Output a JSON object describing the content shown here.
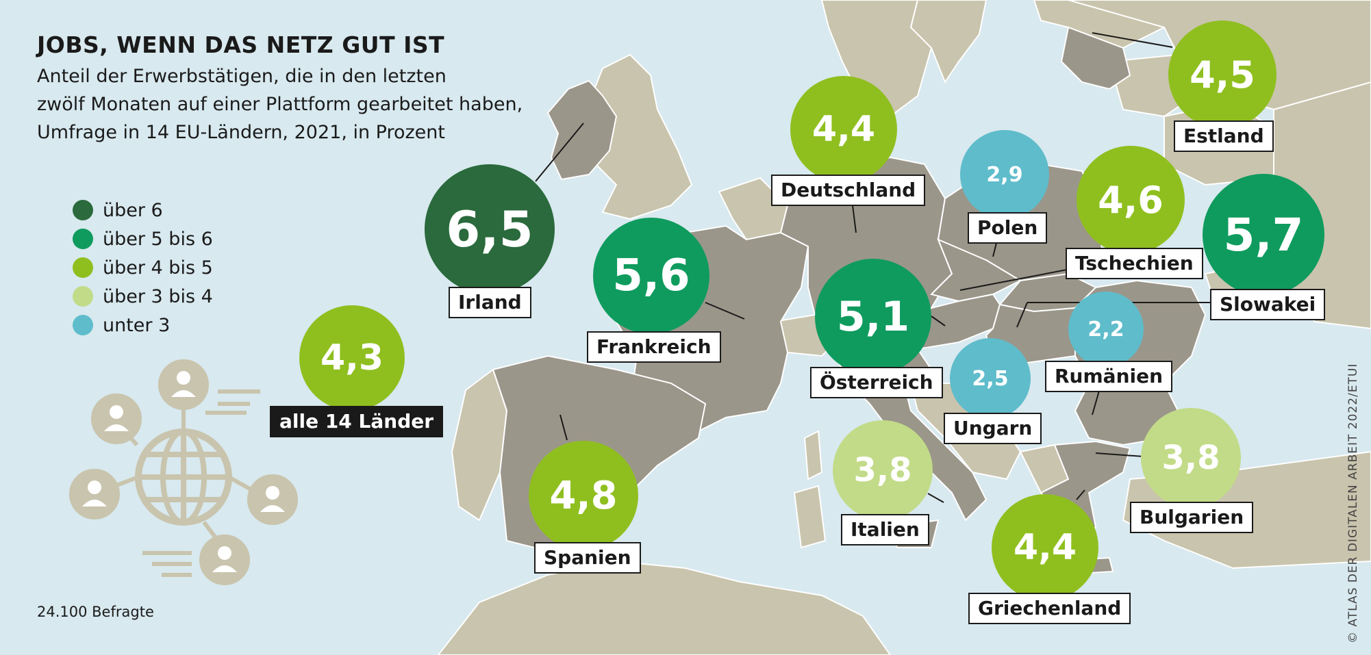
{
  "title": "JOBS, WENN DAS NETZ GUT IST",
  "subtitle_lines": [
    "Anteil der Erwerbstätigen, die in den letzten",
    "zwölf Monaten auf einer Plattform gearbeitet haben,",
    "Umfrage in 14 EU-Ländern, 2021, in Prozent"
  ],
  "colors": {
    "sea": "#d8e9ef",
    "land_other": "#c9c4ad",
    "land_surveyed": "#9b968a",
    "border": "#ffffff",
    "dark_green": "#2a6a3c",
    "green": "#0f9b5e",
    "lime": "#8fbf1f",
    "light_green": "#c2db88",
    "blue": "#5fbccb"
  },
  "legend": [
    {
      "label": "über 6",
      "color": "#2a6a3c"
    },
    {
      "label": "über 5 bis 6",
      "color": "#0f9b5e"
    },
    {
      "label": "über 4 bis 5",
      "color": "#8fbf1f"
    },
    {
      "label": "über 3 bis 4",
      "color": "#c2db88"
    },
    {
      "label": "unter 3",
      "color": "#5fbccb"
    }
  ],
  "countries": [
    {
      "name": "Irland",
      "value": "6,5",
      "color": "#2a6a3c"
    },
    {
      "name": "Frankreich",
      "value": "5,6",
      "color": "#0f9b5e"
    },
    {
      "name": "Spanien",
      "value": "4,8",
      "color": "#8fbf1f"
    },
    {
      "name": "Deutschland",
      "value": "4,4",
      "color": "#8fbf1f"
    },
    {
      "name": "Polen",
      "value": "2,9",
      "color": "#5fbccb"
    },
    {
      "name": "Österreich",
      "value": "5,1",
      "color": "#0f9b5e"
    },
    {
      "name": "Ungarn",
      "value": "2,5",
      "color": "#5fbccb"
    },
    {
      "name": "Italien",
      "value": "3,8",
      "color": "#c2db88"
    },
    {
      "name": "Tschechien",
      "value": "4,6",
      "color": "#8fbf1f"
    },
    {
      "name": "Slowakei",
      "value": "5,7",
      "color": "#0f9b5e"
    },
    {
      "name": "Rumänien",
      "value": "2,2",
      "color": "#5fbccb"
    },
    {
      "name": "Bulgarien",
      "value": "3,8",
      "color": "#c2db88"
    },
    {
      "name": "Griechenland",
      "value": "4,4",
      "color": "#8fbf1f"
    },
    {
      "name": "Estland",
      "value": "4,5",
      "color": "#8fbf1f"
    }
  ],
  "total": {
    "name": "alle 14 Länder",
    "value": "4,3",
    "color": "#8fbf1f"
  },
  "note": "24.100 Befragte",
  "credit": "© ATLAS DER DIGITALEN ARBEIT 2022/ETUI",
  "icons": [
    "globe-icon",
    "person-icon"
  ]
}
